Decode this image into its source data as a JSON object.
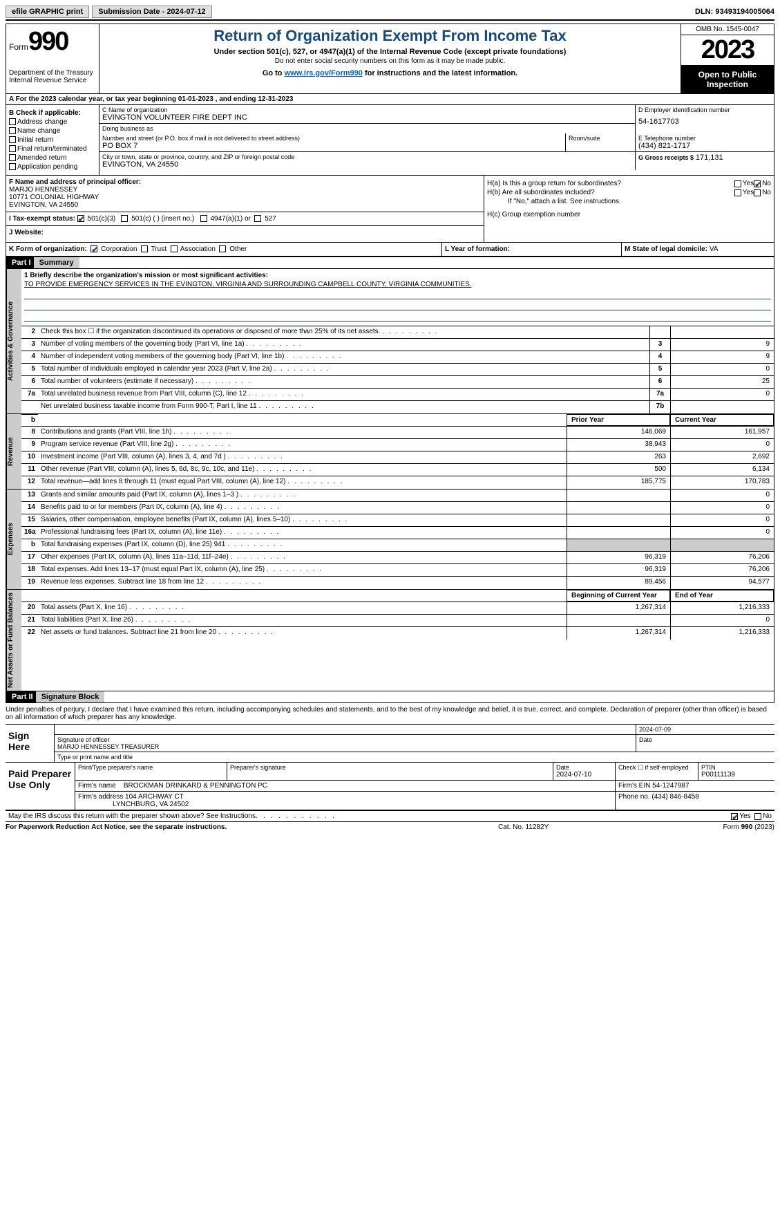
{
  "topbar": {
    "efile": "efile GRAPHIC print",
    "submission": "Submission Date - 2024-07-12",
    "dln": "DLN: 93493194005064"
  },
  "header": {
    "form_prefix": "Form",
    "form_num": "990",
    "dept": "Department of the Treasury",
    "irs": "Internal Revenue Service",
    "title": "Return of Organization Exempt From Income Tax",
    "sub1": "Under section 501(c), 527, or 4947(a)(1) of the Internal Revenue Code (except private foundations)",
    "sub2": "Do not enter social security numbers on this form as it may be made public.",
    "sub3_a": "Go to ",
    "sub3_link": "www.irs.gov/Form990",
    "sub3_b": " for instructions and the latest information.",
    "omb": "OMB No. 1545-0047",
    "year": "2023",
    "open": "Open to Public Inspection"
  },
  "row_a": "A For the 2023 calendar year, or tax year beginning 01-01-2023   , and ending 12-31-2023",
  "box_b": {
    "title": "B Check if applicable:",
    "items": [
      "Address change",
      "Name change",
      "Initial return",
      "Final return/terminated",
      "Amended return",
      "Application pending"
    ]
  },
  "box_c": {
    "name_lbl": "C Name of organization",
    "name": "EVINGTON VOLUNTEER FIRE DEPT INC",
    "dba_lbl": "Doing business as",
    "dba": "",
    "addr_lbl": "Number and street (or P.O. box if mail is not delivered to street address)",
    "addr": "PO BOX 7",
    "room_lbl": "Room/suite",
    "city_lbl": "City or town, state or province, country, and ZIP or foreign postal code",
    "city": "EVINGTON, VA  24550"
  },
  "box_d": {
    "lbl": "D Employer identification number",
    "val": "54-1617703"
  },
  "box_e": {
    "lbl": "E Telephone number",
    "val": "(434) 821-1717"
  },
  "box_g": {
    "lbl": "G Gross receipts $",
    "val": "171,131"
  },
  "box_f": {
    "lbl": "F  Name and address of principal officer:",
    "name": "MARJO HENNESSEY",
    "addr1": "10771 COLONIAL HIGHWAY",
    "addr2": "EVINGTON, VA  24550"
  },
  "box_h": {
    "a_lbl": "H(a)  Is this a group return for subordinates?",
    "b_lbl": "H(b)  Are all subordinates included?",
    "b_note": "If \"No,\" attach a list. See instructions.",
    "c_lbl": "H(c)  Group exemption number"
  },
  "row_i": {
    "lbl": "I   Tax-exempt status:",
    "opts": [
      "501(c)(3)",
      "501(c) (  ) (insert no.)",
      "4947(a)(1) or",
      "527"
    ]
  },
  "row_j": {
    "lbl": "J   Website:",
    "val": ""
  },
  "row_k": {
    "lbl": "K Form of organization:",
    "opts": [
      "Corporation",
      "Trust",
      "Association",
      "Other"
    ],
    "l_lbl": "L Year of formation:",
    "l_val": "",
    "m_lbl": "M State of legal domicile:",
    "m_val": "VA"
  },
  "part1": {
    "hdr": "Part I",
    "title": "Summary"
  },
  "mission": {
    "lbl": "1   Briefly describe the organization's mission or most significant activities:",
    "text": "TO PROVIDE EMERGENCY SERVICES IN THE EVINGTON, VIRGINIA AND SURROUNDING CAMPBELL COUNTY, VIRGINIA COMMUNITIES."
  },
  "gov_lines": [
    {
      "n": "2",
      "d": "Check this box ☐ if the organization discontinued its operations or disposed of more than 25% of its net assets.",
      "box": "",
      "a": ""
    },
    {
      "n": "3",
      "d": "Number of voting members of the governing body (Part VI, line 1a)",
      "box": "3",
      "a": "9"
    },
    {
      "n": "4",
      "d": "Number of independent voting members of the governing body (Part VI, line 1b)",
      "box": "4",
      "a": "9"
    },
    {
      "n": "5",
      "d": "Total number of individuals employed in calendar year 2023 (Part V, line 2a)",
      "box": "5",
      "a": "0"
    },
    {
      "n": "6",
      "d": "Total number of volunteers (estimate if necessary)",
      "box": "6",
      "a": "25"
    },
    {
      "n": "7a",
      "d": "Total unrelated business revenue from Part VIII, column (C), line 12",
      "box": "7a",
      "a": "0"
    },
    {
      "n": "",
      "d": "Net unrelated business taxable income from Form 990-T, Part I, line 11",
      "box": "7b",
      "a": ""
    }
  ],
  "rev_hdr": {
    "prior": "Prior Year",
    "curr": "Current Year"
  },
  "rev_lines": [
    {
      "n": "8",
      "d": "Contributions and grants (Part VIII, line 1h)",
      "p": "146,069",
      "c": "161,957"
    },
    {
      "n": "9",
      "d": "Program service revenue (Part VIII, line 2g)",
      "p": "38,943",
      "c": "0"
    },
    {
      "n": "10",
      "d": "Investment income (Part VIII, column (A), lines 3, 4, and 7d )",
      "p": "263",
      "c": "2,692"
    },
    {
      "n": "11",
      "d": "Other revenue (Part VIII, column (A), lines 5, 6d, 8c, 9c, 10c, and 11e)",
      "p": "500",
      "c": "6,134"
    },
    {
      "n": "12",
      "d": "Total revenue—add lines 8 through 11 (must equal Part VIII, column (A), line 12)",
      "p": "185,775",
      "c": "170,783"
    }
  ],
  "exp_lines": [
    {
      "n": "13",
      "d": "Grants and similar amounts paid (Part IX, column (A), lines 1–3 )",
      "p": "",
      "c": "0"
    },
    {
      "n": "14",
      "d": "Benefits paid to or for members (Part IX, column (A), line 4)",
      "p": "",
      "c": "0"
    },
    {
      "n": "15",
      "d": "Salaries, other compensation, employee benefits (Part IX, column (A), lines 5–10)",
      "p": "",
      "c": "0"
    },
    {
      "n": "16a",
      "d": "Professional fundraising fees (Part IX, column (A), line 11e)",
      "p": "",
      "c": "0"
    },
    {
      "n": "b",
      "d": "Total fundraising expenses (Part IX, column (D), line 25) 941",
      "p": "grey",
      "c": "grey"
    },
    {
      "n": "17",
      "d": "Other expenses (Part IX, column (A), lines 11a–11d, 11f–24e)",
      "p": "96,319",
      "c": "76,206"
    },
    {
      "n": "18",
      "d": "Total expenses. Add lines 13–17 (must equal Part IX, column (A), line 25)",
      "p": "96,319",
      "c": "76,206"
    },
    {
      "n": "19",
      "d": "Revenue less expenses. Subtract line 18 from line 12",
      "p": "89,456",
      "c": "94,577"
    }
  ],
  "na_hdr": {
    "prior": "Beginning of Current Year",
    "curr": "End of Year"
  },
  "na_lines": [
    {
      "n": "20",
      "d": "Total assets (Part X, line 16)",
      "p": "1,267,314",
      "c": "1,216,333"
    },
    {
      "n": "21",
      "d": "Total liabilities (Part X, line 26)",
      "p": "",
      "c": "0"
    },
    {
      "n": "22",
      "d": "Net assets or fund balances. Subtract line 21 from line 20",
      "p": "1,267,314",
      "c": "1,216,333"
    }
  ],
  "vtabs": {
    "gov": "Activities & Governance",
    "rev": "Revenue",
    "exp": "Expenses",
    "na": "Net Assets or Fund Balances"
  },
  "part2": {
    "hdr": "Part II",
    "title": "Signature Block"
  },
  "sig": {
    "decl": "Under penalties of perjury, I declare that I have examined this return, including accompanying schedules and statements, and to the best of my knowledge and belief, it is true, correct, and complete. Declaration of preparer (other than officer) is based on all information of which preparer has any knowledge.",
    "here": "Sign Here",
    "date": "2024-07-09",
    "sig_lbl": "Signature of officer",
    "name": "MARJO HENNESSEY TREASURER",
    "name_lbl": "Type or print name and title",
    "date_lbl": "Date"
  },
  "prep": {
    "lbl": "Paid Preparer Use Only",
    "h1": "Print/Type preparer's name",
    "h2": "Preparer's signature",
    "h3": "Date",
    "h3v": "2024-07-10",
    "h4": "Check ☐ if self-employed",
    "h5": "PTIN",
    "h5v": "P00111139",
    "firm_lbl": "Firm's name",
    "firm": "BROCKMAN DRINKARD & PENNINGTON PC",
    "ein_lbl": "Firm's EIN",
    "ein": "54-1247987",
    "addr_lbl": "Firm's address",
    "addr1": "104 ARCHWAY CT",
    "addr2": "LYNCHBURG, VA  24502",
    "phone_lbl": "Phone no.",
    "phone": "(434) 846-8458"
  },
  "discuss": "May the IRS discuss this return with the preparer shown above? See Instructions.",
  "footer": {
    "l": "For Paperwork Reduction Act Notice, see the separate instructions.",
    "c": "Cat. No. 11282Y",
    "r_a": "Form ",
    "r_b": "990",
    "r_c": " (2023)"
  }
}
